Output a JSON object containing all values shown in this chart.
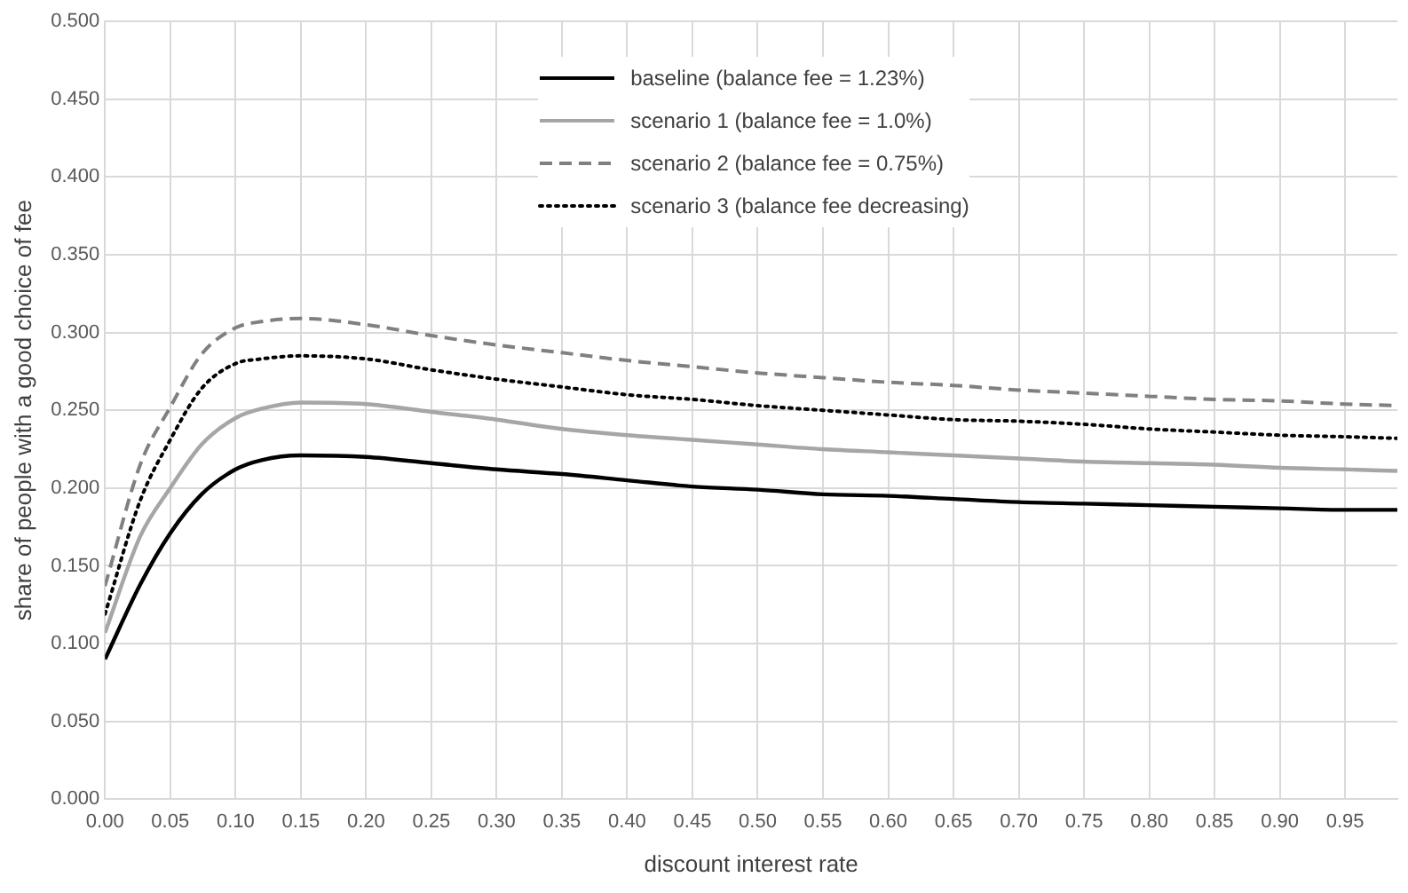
{
  "chart_data": {
    "type": "line",
    "xlabel": "discount interest rate",
    "ylabel": "share of people with a good choice of fee",
    "x": [
      0,
      0.027,
      0.05,
      0.074,
      0.1,
      0.12,
      0.15,
      0.2,
      0.25,
      0.3,
      0.35,
      0.4,
      0.45,
      0.5,
      0.55,
      0.6,
      0.65,
      0.7,
      0.75,
      0.8,
      0.85,
      0.9,
      0.95,
      0.99
    ],
    "series": [
      {
        "name": "baseline (balance fee = 1.23%)",
        "color": "#000000",
        "line_style": "solid",
        "values": [
          0.09,
          0.138,
          0.171,
          0.196,
          0.212,
          0.218,
          0.221,
          0.22,
          0.216,
          0.212,
          0.209,
          0.205,
          0.201,
          0.199,
          0.196,
          0.195,
          0.193,
          0.191,
          0.19,
          0.189,
          0.188,
          0.187,
          0.186,
          0.186
        ]
      },
      {
        "name": "scenario 1 (balance fee = 1.0%)",
        "color": "#a6a6a6",
        "line_style": "solid",
        "values": [
          0.107,
          0.169,
          0.2,
          0.228,
          0.245,
          0.251,
          0.255,
          0.254,
          0.249,
          0.244,
          0.238,
          0.234,
          0.231,
          0.228,
          0.225,
          0.223,
          0.221,
          0.219,
          0.217,
          0.216,
          0.215,
          0.213,
          0.212,
          0.211
        ]
      },
      {
        "name": "scenario 2 (balance fee = 0.75%)",
        "color": "#808080",
        "line_style": "dashed",
        "values": [
          0.137,
          0.215,
          0.252,
          0.286,
          0.303,
          0.307,
          0.309,
          0.305,
          0.298,
          0.292,
          0.287,
          0.282,
          0.278,
          0.274,
          0.271,
          0.268,
          0.266,
          0.263,
          0.261,
          0.259,
          0.257,
          0.256,
          0.254,
          0.253
        ]
      },
      {
        "name": "scenario 3 (balance fee decreasing)",
        "color": "#000000",
        "line_style": "dotted",
        "values": [
          0.119,
          0.192,
          0.231,
          0.264,
          0.28,
          0.283,
          0.285,
          0.283,
          0.276,
          0.27,
          0.265,
          0.26,
          0.257,
          0.253,
          0.25,
          0.247,
          0.244,
          0.243,
          0.241,
          0.238,
          0.236,
          0.234,
          0.233,
          0.232
        ]
      }
    ],
    "xlim": [
      0,
      0.99
    ],
    "xticks": [
      {
        "value": 0,
        "label": "0.00"
      },
      {
        "value": 0.05,
        "label": "0.05"
      },
      {
        "value": 0.1,
        "label": "0.10"
      },
      {
        "value": 0.15,
        "label": "0.15"
      },
      {
        "value": 0.2,
        "label": "0.20"
      },
      {
        "value": 0.25,
        "label": "0.25"
      },
      {
        "value": 0.3,
        "label": "0.30"
      },
      {
        "value": 0.35,
        "label": "0.35"
      },
      {
        "value": 0.4,
        "label": "0.40"
      },
      {
        "value": 0.45,
        "label": "0.45"
      },
      {
        "value": 0.5,
        "label": "0.50"
      },
      {
        "value": 0.55,
        "label": "0.55"
      },
      {
        "value": 0.6,
        "label": "0.60"
      },
      {
        "value": 0.65,
        "label": "0.65"
      },
      {
        "value": 0.7,
        "label": "0.70"
      },
      {
        "value": 0.75,
        "label": "0.75"
      },
      {
        "value": 0.8,
        "label": "0.80"
      },
      {
        "value": 0.85,
        "label": "0.85"
      },
      {
        "value": 0.9,
        "label": "0.90"
      },
      {
        "value": 0.95,
        "label": "0.95"
      }
    ],
    "ylim": [
      0,
      0.5
    ],
    "yticks": [
      {
        "value": 0,
        "label": "0.000"
      },
      {
        "value": 0.05,
        "label": "0.050"
      },
      {
        "value": 0.1,
        "label": "0.100"
      },
      {
        "value": 0.15,
        "label": "0.150"
      },
      {
        "value": 0.2,
        "label": "0.200"
      },
      {
        "value": 0.25,
        "label": "0.250"
      },
      {
        "value": 0.3,
        "label": "0.300"
      },
      {
        "value": 0.35,
        "label": "0.350"
      },
      {
        "value": 0.4,
        "label": "0.400"
      },
      {
        "value": 0.45,
        "label": "0.450"
      },
      {
        "value": 0.5,
        "label": "0.500"
      }
    ],
    "grid": true,
    "legend": "top",
    "marker": "none"
  }
}
